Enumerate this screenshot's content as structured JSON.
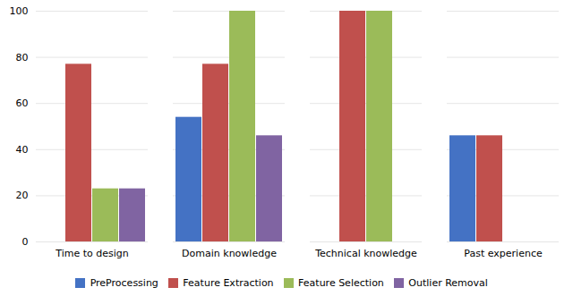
{
  "chart_data": {
    "type": "bar",
    "categories": [
      "Time to design",
      "Domain knowledge",
      "Technical knowledge",
      "Past experience"
    ],
    "series": [
      {
        "name": "PreProcessing",
        "color": "#4472c4",
        "values": [
          0,
          54,
          0,
          46
        ]
      },
      {
        "name": "Feature Extraction",
        "color": "#c0504d",
        "values": [
          77,
          77,
          100,
          46
        ]
      },
      {
        "name": "Feature Selection",
        "color": "#9bbb59",
        "values": [
          23,
          100,
          100,
          0
        ]
      },
      {
        "name": "Outlier Removal",
        "color": "#8064a2",
        "values": [
          23,
          46,
          0,
          0
        ]
      }
    ],
    "ylim": [
      0,
      100
    ],
    "yticks": [
      0,
      20,
      40,
      60,
      80,
      100
    ],
    "grid": true,
    "legend": "bottom"
  }
}
